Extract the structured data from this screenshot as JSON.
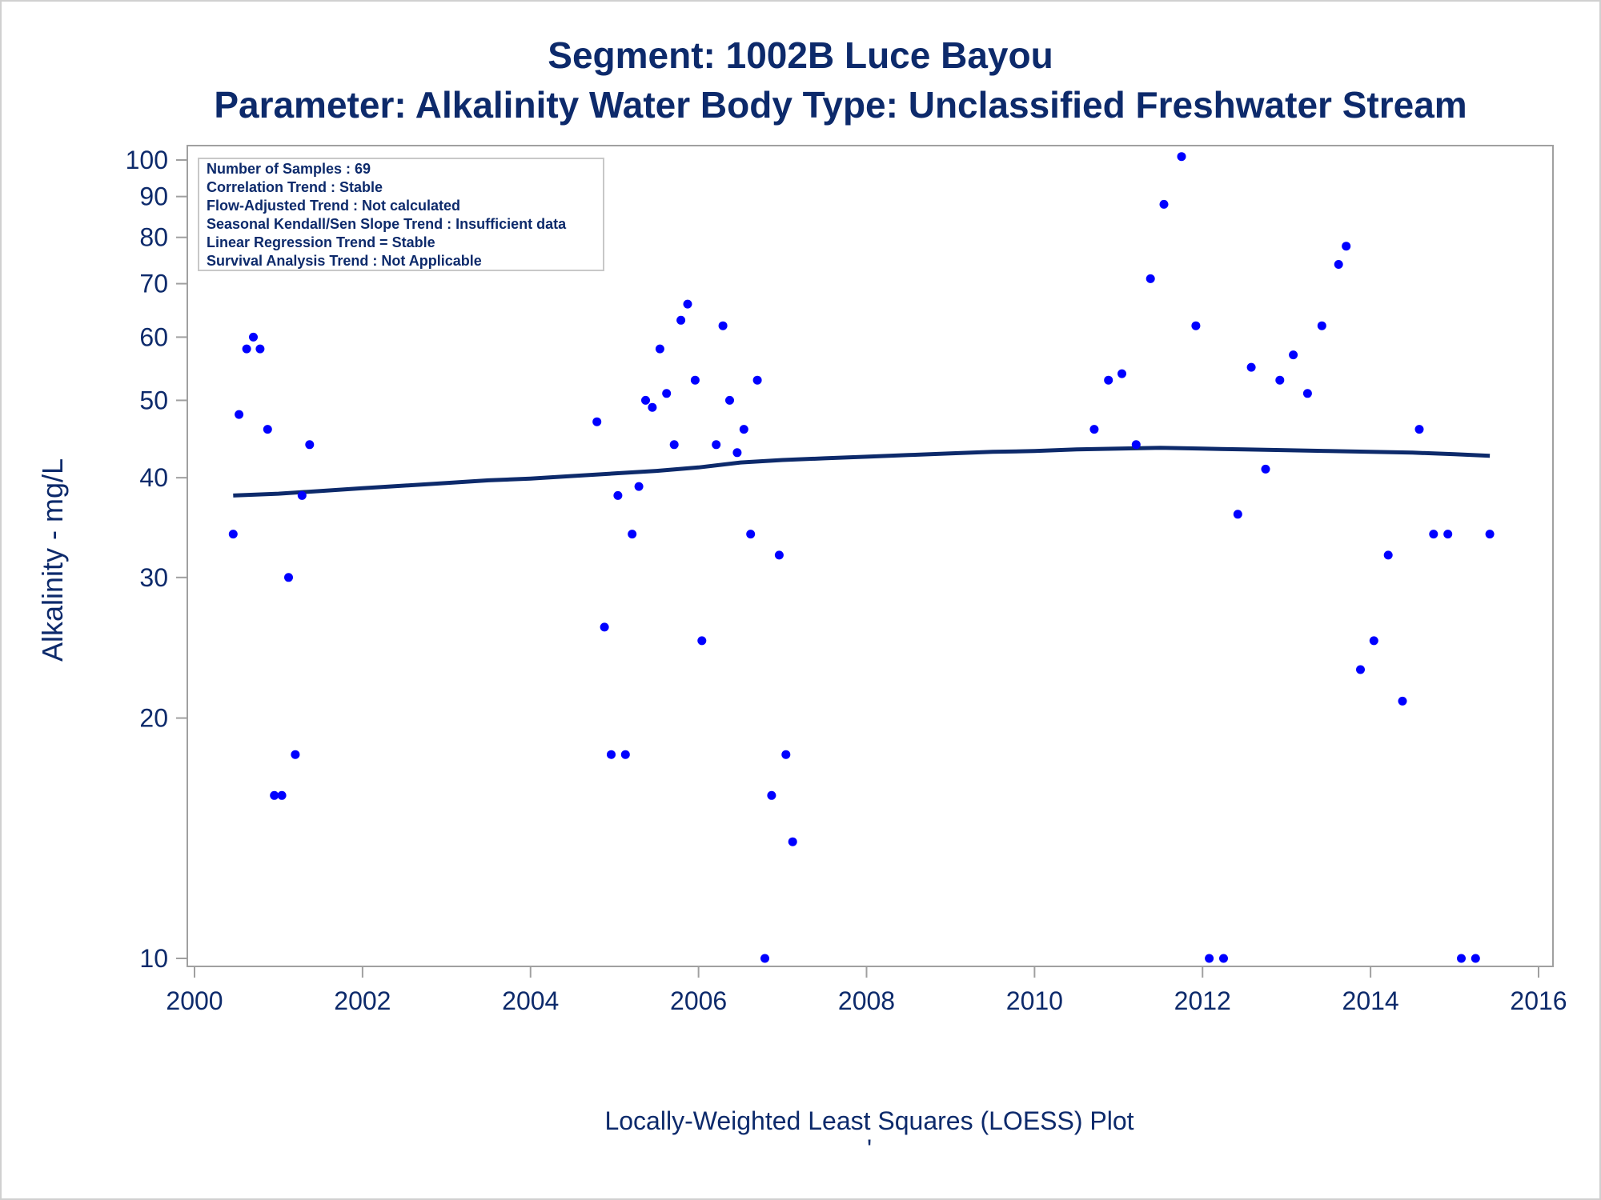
{
  "colors": {
    "text": "#0d2a6b",
    "points": "#0000ff",
    "loess": "#0d2a6b",
    "frame": "#a0a0a0"
  },
  "chart_data": {
    "type": "scatter",
    "title": "Segment: 1002B  Luce Bayou",
    "subtitle": "Parameter: Alkalinity   Water Body Type: Unclassified Freshwater Stream",
    "xlabel": "",
    "ylabel": "Alkalinity - mg/L",
    "footnote": "Locally-Weighted Least Squares (LOESS) Plot",
    "footnote_mark": "'",
    "y_scale": "log",
    "xlim": [
      2000,
      2016
    ],
    "ylim": [
      10,
      100
    ],
    "x_ticks": [
      "2000",
      "2002",
      "2004",
      "2006",
      "2008",
      "2010",
      "2012",
      "2014",
      "2016"
    ],
    "y_ticks": [
      "10",
      "20",
      "30",
      "40",
      "50",
      "60",
      "70",
      "80",
      "90",
      "100"
    ],
    "grid": false,
    "stats_box": {
      "placement": "top-left",
      "lines": [
        "Number of Samples : 69",
        "Correlation Trend : Stable",
        "Flow-Adjusted Trend : Not calculated",
        "Seasonal Kendall/Sen Slope Trend : Insufficient data",
        "Linear Regression Trend = Stable",
        "Survival Analysis Trend : Not Applicable"
      ]
    },
    "series": [
      {
        "type": "scatter",
        "values": [
          [
            2000.46,
            34
          ],
          [
            2000.53,
            48
          ],
          [
            2000.62,
            58
          ],
          [
            2000.7,
            60
          ],
          [
            2000.78,
            58
          ],
          [
            2000.87,
            46
          ],
          [
            2000.95,
            16
          ],
          [
            2001.04,
            16
          ],
          [
            2001.12,
            30
          ],
          [
            2001.2,
            18
          ],
          [
            2001.28,
            38
          ],
          [
            2001.37,
            44
          ],
          [
            2004.79,
            47
          ],
          [
            2004.88,
            26
          ],
          [
            2004.96,
            18
          ],
          [
            2005.04,
            38
          ],
          [
            2005.13,
            18
          ],
          [
            2005.21,
            34
          ],
          [
            2005.29,
            39
          ],
          [
            2005.37,
            50
          ],
          [
            2005.45,
            49
          ],
          [
            2005.54,
            58
          ],
          [
            2005.62,
            51
          ],
          [
            2005.71,
            44
          ],
          [
            2005.79,
            63
          ],
          [
            2005.87,
            66
          ],
          [
            2005.96,
            53
          ],
          [
            2006.04,
            25
          ],
          [
            2006.21,
            44
          ],
          [
            2006.29,
            62
          ],
          [
            2006.37,
            50
          ],
          [
            2006.46,
            43
          ],
          [
            2006.54,
            46
          ],
          [
            2006.62,
            34
          ],
          [
            2006.7,
            53
          ],
          [
            2006.79,
            10
          ],
          [
            2006.87,
            16
          ],
          [
            2006.96,
            32
          ],
          [
            2007.04,
            18
          ],
          [
            2007.12,
            14
          ],
          [
            2010.71,
            46
          ],
          [
            2010.88,
            53
          ],
          [
            2011.04,
            54
          ],
          [
            2011.21,
            44
          ],
          [
            2011.38,
            71
          ],
          [
            2011.54,
            88
          ],
          [
            2011.75,
            101
          ],
          [
            2011.92,
            62
          ],
          [
            2012.08,
            10
          ],
          [
            2012.25,
            10
          ],
          [
            2012.42,
            36
          ],
          [
            2012.58,
            55
          ],
          [
            2012.75,
            41
          ],
          [
            2012.92,
            53
          ],
          [
            2013.08,
            57
          ],
          [
            2013.25,
            51
          ],
          [
            2013.42,
            62
          ],
          [
            2013.62,
            74
          ],
          [
            2013.71,
            78
          ],
          [
            2013.88,
            23
          ],
          [
            2014.04,
            25
          ],
          [
            2014.21,
            32
          ],
          [
            2014.38,
            21
          ],
          [
            2014.58,
            46
          ],
          [
            2014.75,
            34
          ],
          [
            2014.92,
            34
          ],
          [
            2015.08,
            10
          ],
          [
            2015.25,
            10
          ],
          [
            2015.42,
            34
          ]
        ]
      },
      {
        "type": "line",
        "values": [
          [
            2000.46,
            38.0
          ],
          [
            2001.0,
            38.2
          ],
          [
            2001.5,
            38.5
          ],
          [
            2002.0,
            38.8
          ],
          [
            2002.5,
            39.1
          ],
          [
            2003.0,
            39.4
          ],
          [
            2003.5,
            39.7
          ],
          [
            2004.0,
            39.9
          ],
          [
            2004.5,
            40.2
          ],
          [
            2005.0,
            40.5
          ],
          [
            2005.5,
            40.8
          ],
          [
            2006.0,
            41.2
          ],
          [
            2006.5,
            41.8
          ],
          [
            2007.0,
            42.1
          ],
          [
            2007.5,
            42.3
          ],
          [
            2008.0,
            42.5
          ],
          [
            2008.5,
            42.7
          ],
          [
            2009.0,
            42.9
          ],
          [
            2009.5,
            43.1
          ],
          [
            2010.0,
            43.2
          ],
          [
            2010.5,
            43.4
          ],
          [
            2011.0,
            43.5
          ],
          [
            2011.5,
            43.6
          ],
          [
            2012.0,
            43.5
          ],
          [
            2012.5,
            43.4
          ],
          [
            2013.0,
            43.3
          ],
          [
            2013.5,
            43.2
          ],
          [
            2014.0,
            43.1
          ],
          [
            2014.5,
            43.0
          ],
          [
            2015.0,
            42.8
          ],
          [
            2015.42,
            42.6
          ]
        ]
      }
    ]
  }
}
